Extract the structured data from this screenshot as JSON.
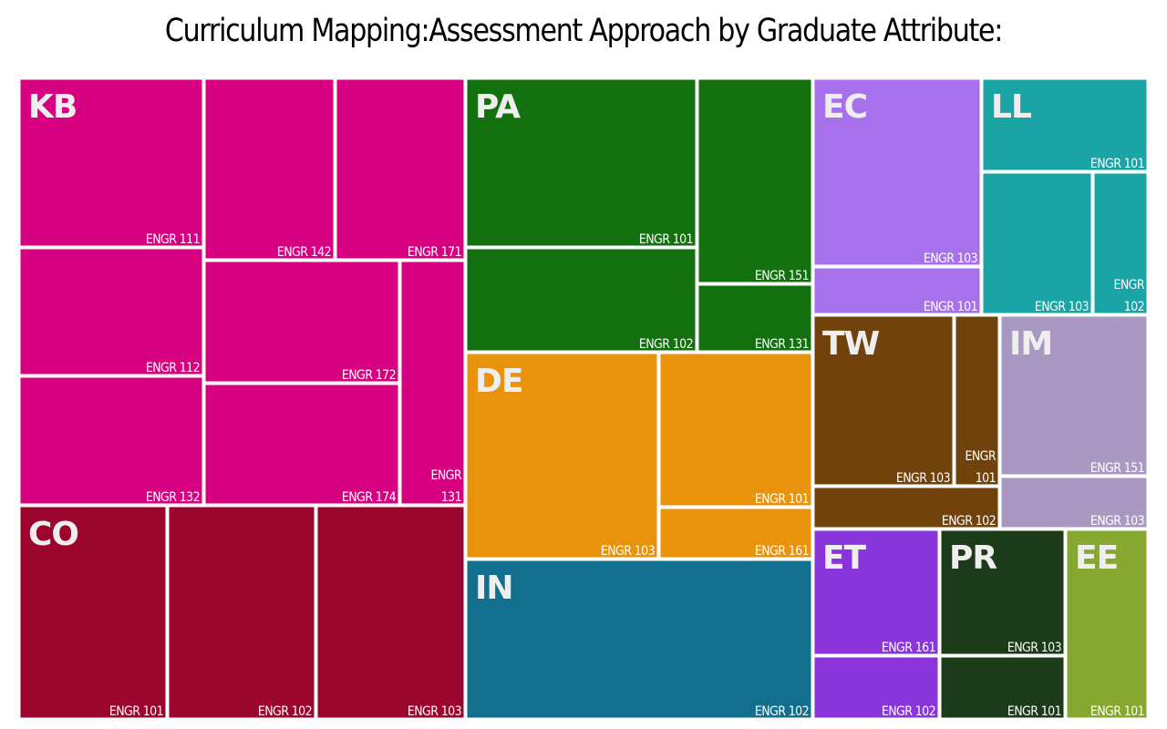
{
  "title": "Curriculum Mapping:Assessment Approach by Graduate Attribute:",
  "chart_data": {
    "type": "treemap",
    "title": "Curriculum Mapping:Assessment Approach by Graduate Attribute:",
    "groups": [
      {
        "name": "KB",
        "color": "#d60080",
        "children": [
          {
            "label": "ENGR 111"
          },
          {
            "label": "ENGR 142"
          },
          {
            "label": "ENGR 171"
          },
          {
            "label": "ENGR 112"
          },
          {
            "label": "ENGR 172"
          },
          {
            "label": "ENGR 132"
          },
          {
            "label": "ENGR 174"
          },
          {
            "label": "ENGR 131",
            "lines": [
              "ENGR",
              "131"
            ]
          }
        ]
      },
      {
        "name": "CO",
        "color": "#9c052e",
        "children": [
          {
            "label": "ENGR 101"
          },
          {
            "label": "ENGR 102"
          },
          {
            "label": "ENGR 103"
          }
        ]
      },
      {
        "name": "PA",
        "color": "#12700f",
        "children": [
          {
            "label": "ENGR 101"
          },
          {
            "label": "ENGR 151"
          },
          {
            "label": "ENGR 102"
          },
          {
            "label": "ENGR 131"
          }
        ]
      },
      {
        "name": "DE",
        "color": "#e9920c",
        "children": [
          {
            "label": "ENGR 103"
          },
          {
            "label": "ENGR 101"
          },
          {
            "label": "ENGR 161"
          }
        ]
      },
      {
        "name": "IN",
        "color": "#126f8e",
        "children": [
          {
            "label": "ENGR 102"
          }
        ]
      },
      {
        "name": "EC",
        "color": "#a871ec",
        "children": [
          {
            "label": "ENGR 103"
          },
          {
            "label": "ENGR 101"
          }
        ]
      },
      {
        "name": "LL",
        "color": "#1aa4a6",
        "children": [
          {
            "label": "ENGR 101"
          },
          {
            "label": "ENGR 103"
          },
          {
            "label": "ENGR 102",
            "lines": [
              "ENGR",
              "102"
            ]
          }
        ]
      },
      {
        "name": "TW",
        "color": "#72420c",
        "children": [
          {
            "label": "ENGR 103"
          },
          {
            "label": "ENGR 101",
            "lines": [
              "ENGR",
              "101"
            ]
          },
          {
            "label": "ENGR 102"
          }
        ]
      },
      {
        "name": "IM",
        "color": "#a898c2",
        "children": [
          {
            "label": "ENGR 151"
          },
          {
            "label": "ENGR 103"
          }
        ]
      },
      {
        "name": "ET",
        "color": "#8a35dc",
        "children": [
          {
            "label": "ENGR 161"
          },
          {
            "label": "ENGR 102"
          }
        ]
      },
      {
        "name": "PR",
        "color": "#1c3b18",
        "children": [
          {
            "label": "ENGR 103"
          },
          {
            "label": "ENGR 101"
          }
        ]
      },
      {
        "name": "EE",
        "color": "#86a82e",
        "children": [
          {
            "label": "ENGR 101"
          }
        ]
      }
    ]
  }
}
